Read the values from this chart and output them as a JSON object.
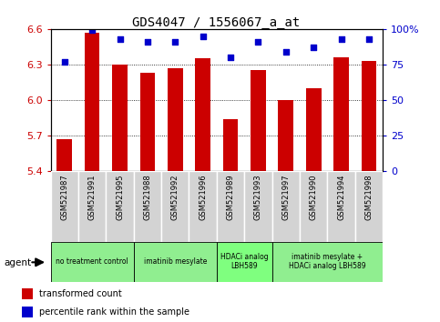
{
  "title": "GDS4047 / 1556067_a_at",
  "samples": [
    "GSM521987",
    "GSM521991",
    "GSM521995",
    "GSM521988",
    "GSM521992",
    "GSM521996",
    "GSM521989",
    "GSM521993",
    "GSM521997",
    "GSM521990",
    "GSM521994",
    "GSM521998"
  ],
  "bar_values": [
    5.67,
    6.57,
    6.3,
    6.23,
    6.27,
    6.35,
    5.84,
    6.25,
    6.0,
    6.1,
    6.36,
    6.33
  ],
  "dot_values": [
    77,
    99,
    93,
    91,
    91,
    95,
    80,
    91,
    84,
    87,
    93,
    93
  ],
  "bar_color": "#cc0000",
  "dot_color": "#0000cc",
  "ylim_left": [
    5.4,
    6.6
  ],
  "yticks_left": [
    5.4,
    5.7,
    6.0,
    6.3,
    6.6
  ],
  "yticks_right": [
    0,
    25,
    50,
    75,
    100
  ],
  "ylim_right": [
    0,
    100
  ],
  "groups": [
    {
      "label": "no treatment control",
      "start": 0,
      "end": 3
    },
    {
      "label": "imatinib mesylate",
      "start": 3,
      "end": 6
    },
    {
      "label": "HDACi analog\nLBH589",
      "start": 6,
      "end": 8
    },
    {
      "label": "imatinib mesylate +\nHDACi analog LBH589",
      "start": 8,
      "end": 12
    }
  ],
  "group_colors": [
    "#90ee90",
    "#90ee90",
    "#7fff7f",
    "#90ee90"
  ],
  "legend_bar_label": "transformed count",
  "legend_dot_label": "percentile rank within the sample",
  "agent_label": "agent",
  "left_axis_color": "#cc0000",
  "right_axis_color": "#0000cc",
  "sample_bg_color": "#d3d3d3",
  "title_font": "monospace",
  "title_fontsize": 10
}
